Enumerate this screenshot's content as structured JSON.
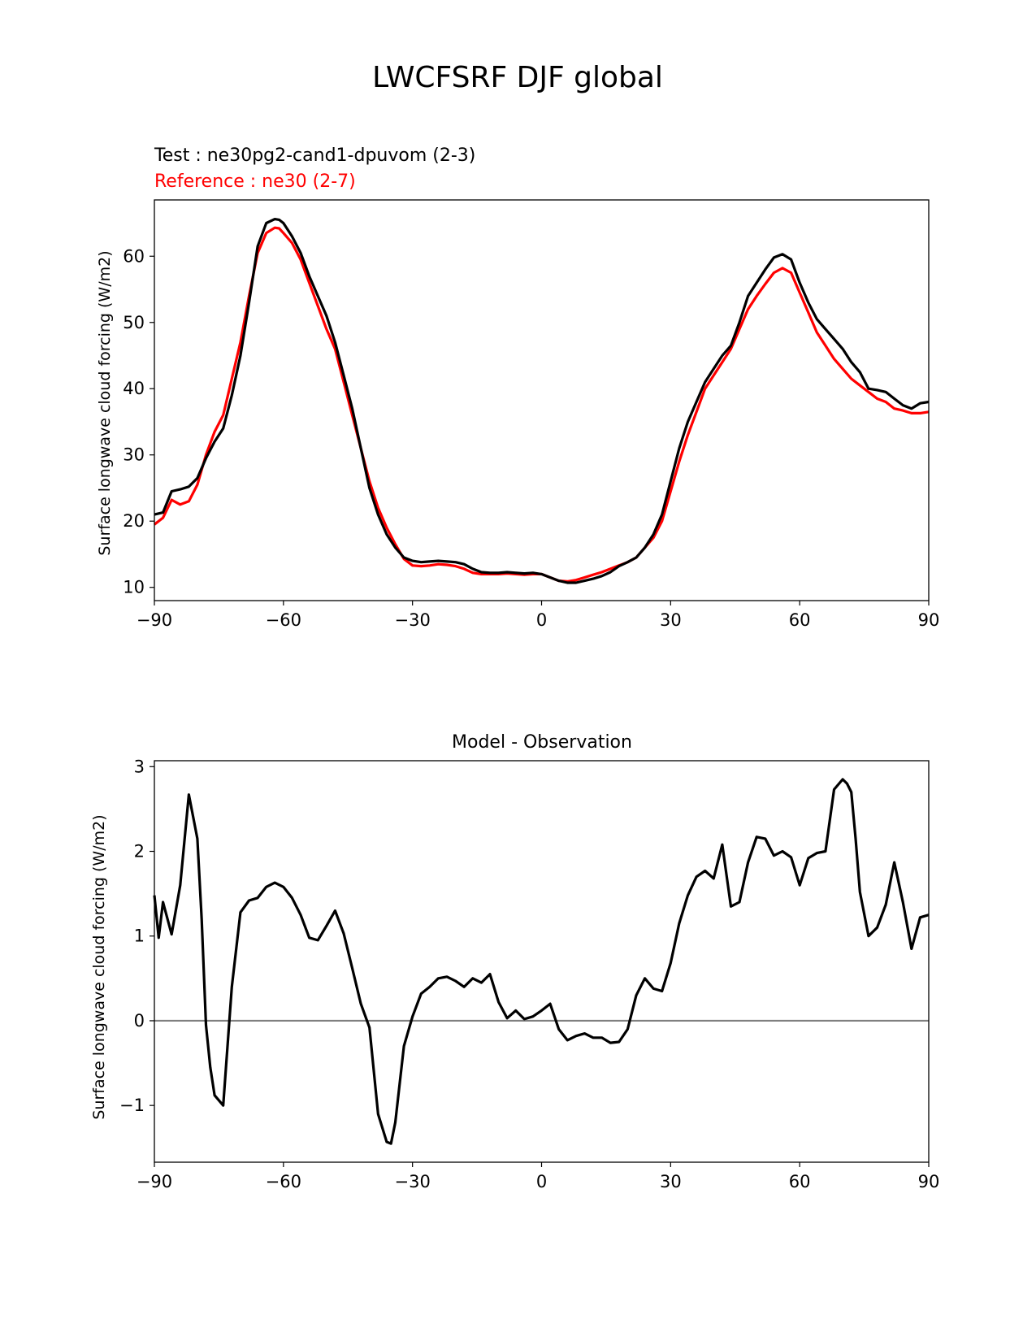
{
  "figure_title": "LWCFSRF DJF global",
  "colors": {
    "test": "#000000",
    "reference": "#ff0000",
    "zero_line": "#808080"
  },
  "chart_data": [
    {
      "type": "line",
      "test_label": "Test : ne30pg2-cand1-dpuvom (2-3)",
      "reference_label": "Reference : ne30 (2-7)",
      "ylabel": "Surface longwave cloud forcing (W/m2)",
      "xlim": [
        -90,
        90
      ],
      "ylim": [
        8,
        68.5
      ],
      "xticks": [
        -90,
        -60,
        -30,
        0,
        30,
        60,
        90
      ],
      "xtick_labels": [
        "−90",
        "−60",
        "−30",
        "0",
        "30",
        "60",
        "90"
      ],
      "yticks": [
        10,
        20,
        30,
        40,
        50,
        60
      ],
      "ytick_labels": [
        "10",
        "20",
        "30",
        "40",
        "50",
        "60"
      ],
      "series": [
        {
          "name": "Test",
          "x": [
            -90,
            -88,
            -86,
            -84,
            -82,
            -80,
            -78,
            -76,
            -74,
            -72,
            -70,
            -68,
            -66,
            -64,
            -62,
            -61,
            -60,
            -58,
            -56,
            -54,
            -52,
            -50,
            -48,
            -46,
            -44,
            -42,
            -40,
            -38,
            -36,
            -34,
            -32,
            -30,
            -28,
            -26,
            -24,
            -22,
            -20,
            -18,
            -16,
            -14,
            -12,
            -10,
            -8,
            -6,
            -4,
            -2,
            0,
            2,
            4,
            6,
            8,
            10,
            12,
            14,
            16,
            18,
            20,
            22,
            24,
            26,
            28,
            30,
            32,
            34,
            36,
            38,
            40,
            42,
            44,
            46,
            48,
            50,
            52,
            54,
            56,
            58,
            60,
            62,
            64,
            66,
            68,
            70,
            72,
            74,
            76,
            78,
            80,
            82,
            84,
            86,
            88,
            90
          ],
          "y": [
            21,
            21.3,
            24.5,
            24.8,
            25.2,
            26.5,
            29.5,
            32,
            34,
            39,
            45,
            53,
            61.5,
            65,
            65.6,
            65.5,
            65,
            63,
            60.5,
            57,
            54,
            51,
            47,
            42,
            37,
            31,
            25,
            21,
            18,
            16,
            14.5,
            14,
            13.8,
            13.9,
            14,
            13.9,
            13.8,
            13.5,
            12.8,
            12.3,
            12.2,
            12.2,
            12.3,
            12.2,
            12.1,
            12.2,
            12,
            11.5,
            11,
            10.7,
            10.7,
            11,
            11.3,
            11.7,
            12.3,
            13.2,
            13.8,
            14.5,
            16,
            18,
            21,
            26,
            31,
            35,
            38,
            41,
            43,
            45,
            46.5,
            50,
            54,
            56,
            58,
            59.8,
            60.3,
            59.5,
            56,
            53,
            50.5,
            49,
            47.5,
            46,
            44,
            42.5,
            40,
            39.8,
            39.5,
            38.5,
            37.5,
            37,
            37.8,
            38
          ]
        },
        {
          "name": "Reference",
          "x": [
            -90,
            -88,
            -86,
            -84,
            -82,
            -80,
            -78,
            -76,
            -74,
            -72,
            -70,
            -68,
            -66,
            -64,
            -62,
            -61,
            -60,
            -58,
            -56,
            -54,
            -52,
            -50,
            -48,
            -46,
            -44,
            -42,
            -40,
            -38,
            -36,
            -34,
            -32,
            -30,
            -28,
            -26,
            -24,
            -22,
            -20,
            -18,
            -16,
            -14,
            -12,
            -10,
            -8,
            -6,
            -4,
            -2,
            0,
            2,
            4,
            6,
            8,
            10,
            12,
            14,
            16,
            18,
            20,
            22,
            24,
            26,
            28,
            30,
            32,
            34,
            36,
            38,
            40,
            42,
            44,
            46,
            48,
            50,
            52,
            54,
            56,
            58,
            60,
            62,
            64,
            66,
            68,
            70,
            72,
            74,
            76,
            78,
            80,
            82,
            84,
            86,
            88,
            90
          ],
          "y": [
            19.5,
            20.5,
            23.2,
            22.5,
            23,
            25.5,
            30,
            33.5,
            36,
            41.5,
            47,
            54,
            60.5,
            63.5,
            64.3,
            64.2,
            63.5,
            62,
            59.5,
            56,
            52.5,
            49,
            46,
            41,
            36,
            31,
            26,
            22,
            19,
            16.5,
            14.3,
            13.3,
            13.2,
            13.3,
            13.5,
            13.4,
            13.2,
            12.8,
            12.2,
            12,
            12,
            12,
            12.1,
            12,
            11.9,
            12,
            12,
            11.5,
            11,
            10.9,
            11.1,
            11.5,
            11.9,
            12.3,
            12.8,
            13.3,
            13.8,
            14.5,
            16,
            17.5,
            20,
            24.5,
            29,
            33,
            36.5,
            40,
            42,
            44,
            46,
            49,
            52,
            54,
            55.8,
            57.5,
            58.2,
            57.5,
            54.5,
            51.5,
            48.5,
            46.5,
            44.5,
            43,
            41.5,
            40.5,
            39.5,
            38.5,
            38,
            37,
            36.7,
            36.3,
            36.3,
            36.5
          ]
        }
      ]
    },
    {
      "type": "line",
      "title": "Model - Observation",
      "ylabel": "Surface longwave cloud forcing (W/m2)",
      "xlim": [
        -90,
        90
      ],
      "ylim": [
        -1.67,
        3.07
      ],
      "xticks": [
        -90,
        -60,
        -30,
        0,
        30,
        60,
        90
      ],
      "xtick_labels": [
        "−90",
        "−60",
        "−30",
        "0",
        "30",
        "60",
        "90"
      ],
      "yticks": [
        -1,
        0,
        1,
        2,
        3
      ],
      "ytick_labels": [
        "−1",
        "0",
        "1",
        "2",
        "3"
      ],
      "zero_line": 0,
      "series": [
        {
          "name": "Model - Observation",
          "x": [
            -90,
            -89,
            -88,
            -86,
            -84,
            -82,
            -80,
            -79,
            -78,
            -77,
            -76,
            -74,
            -72,
            -70,
            -68,
            -66,
            -64,
            -62,
            -60,
            -58,
            -56,
            -54,
            -52,
            -50,
            -48,
            -46,
            -44,
            -42,
            -40,
            -38,
            -36,
            -35,
            -34,
            -33,
            -32,
            -30,
            -28,
            -26,
            -24,
            -22,
            -20,
            -18,
            -16,
            -14,
            -12,
            -10,
            -8,
            -6,
            -4,
            -2,
            0,
            2,
            4,
            6,
            8,
            10,
            12,
            14,
            16,
            18,
            20,
            22,
            24,
            26,
            28,
            30,
            32,
            34,
            36,
            38,
            40,
            42,
            44,
            46,
            48,
            50,
            52,
            54,
            56,
            58,
            60,
            62,
            64,
            66,
            68,
            70,
            71,
            72,
            73,
            74,
            76,
            78,
            80,
            82,
            84,
            86,
            88,
            90
          ],
          "y": [
            1.48,
            0.98,
            1.4,
            1.02,
            1.6,
            2.67,
            2.15,
            1.2,
            -0.05,
            -0.55,
            -0.88,
            -1,
            0.4,
            1.28,
            1.42,
            1.45,
            1.58,
            1.63,
            1.58,
            1.45,
            1.25,
            0.98,
            0.95,
            1.12,
            1.3,
            1.03,
            0.62,
            0.2,
            -0.08,
            -1.1,
            -1.43,
            -1.45,
            -1.2,
            -0.75,
            -0.3,
            0.05,
            0.32,
            0.4,
            0.5,
            0.52,
            0.47,
            0.4,
            0.5,
            0.45,
            0.55,
            0.22,
            0.03,
            0.12,
            0.02,
            0.05,
            0.12,
            0.2,
            -0.1,
            -0.23,
            -0.18,
            -0.15,
            -0.2,
            -0.2,
            -0.26,
            -0.25,
            -0.1,
            0.3,
            0.5,
            0.38,
            0.35,
            0.68,
            1.15,
            1.48,
            1.7,
            1.77,
            1.68,
            2.08,
            1.35,
            1.4,
            1.87,
            2.17,
            2.15,
            1.95,
            2,
            1.93,
            1.6,
            1.92,
            1.98,
            2,
            2.73,
            2.85,
            2.8,
            2.7,
            2.15,
            1.52,
            1.0,
            1.1,
            1.37,
            1.87,
            1.4,
            0.85,
            1.22,
            1.25
          ]
        }
      ]
    }
  ]
}
